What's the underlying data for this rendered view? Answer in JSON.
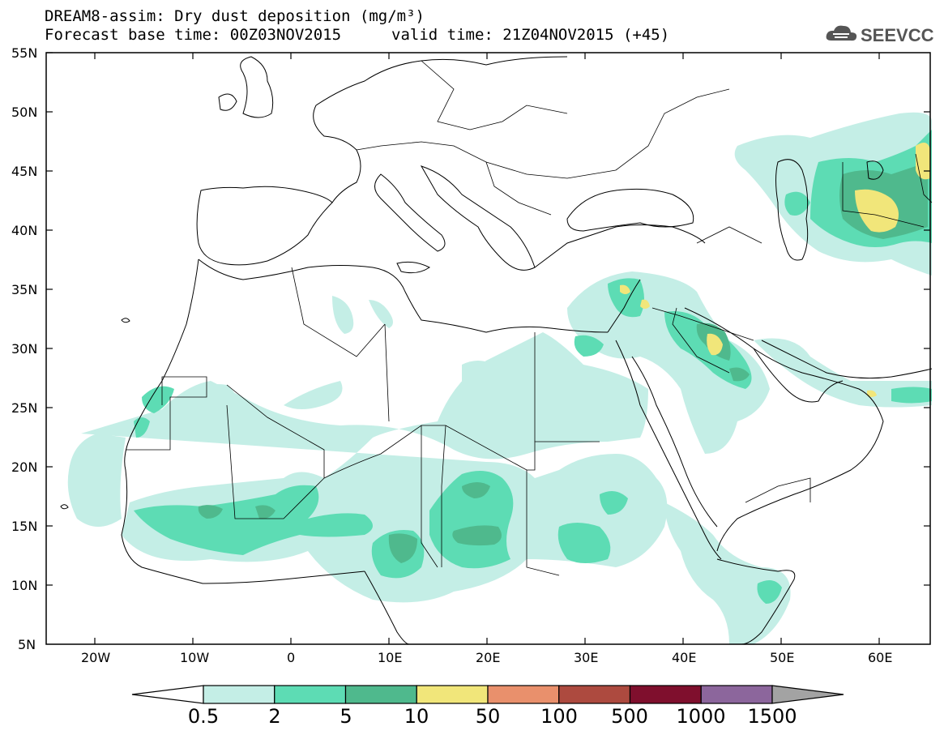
{
  "header": {
    "line1": "DREAM8-assim: Dry dust deposition (mg/m³)",
    "line2": "Forecast base time: 00Z03NOV2015",
    "line3": "valid time: 21Z04NOV2015 (+45)",
    "logo_text": "SEEVCCC"
  },
  "axes": {
    "lat_labels": [
      "55N",
      "50N",
      "45N",
      "40N",
      "35N",
      "30N",
      "25N",
      "20N",
      "15N",
      "10N",
      "5N"
    ],
    "lon_labels": [
      "20W",
      "10W",
      "0",
      "10E",
      "20E",
      "30E",
      "40E",
      "50E",
      "60E"
    ]
  },
  "legend": {
    "labels": [
      "0.5",
      "2",
      "5",
      "10",
      "50",
      "100",
      "500",
      "1000",
      "1500"
    ],
    "colors": [
      "#c4eee6",
      "#5ddcb4",
      "#4fb98d",
      "#f1e67a",
      "#e9906c",
      "#ad4a3f",
      "#7f0f2d",
      "#8c669c",
      "#a3a3a3"
    ]
  },
  "colors": {
    "level1": "#c4eee6",
    "level2": "#5ddcb4",
    "level3": "#4fb98d",
    "level4": "#f1e67a",
    "coast": "#000000"
  }
}
